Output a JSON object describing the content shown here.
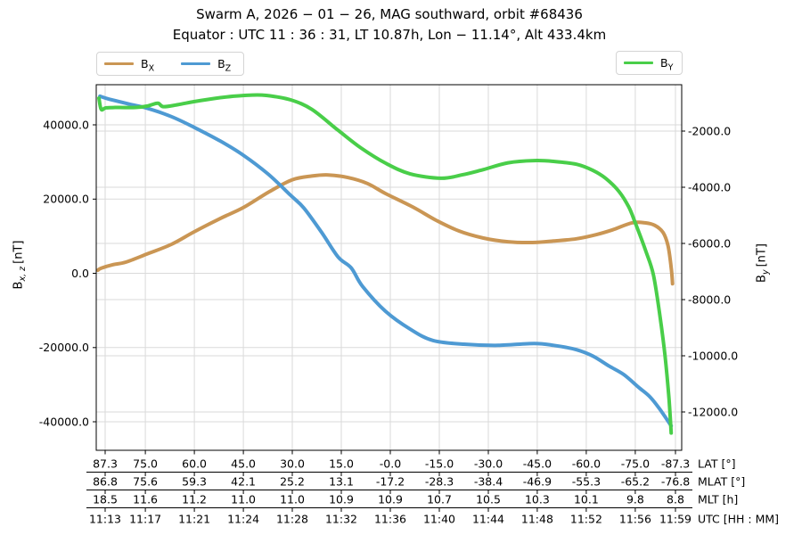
{
  "title": "Swarm A,  2026 − 01 − 26,  MAG southward,  orbit #68436",
  "subtitle": "Equator :  UTC 11 : 36 : 31,  LT 10.87h,  Lon  − 11.14°,  Alt 433.4km",
  "colors": {
    "bx": "#CA9654",
    "bz": "#4E9AD3",
    "by": "#49CE49",
    "grid": "#DADADA",
    "spine": "#000000"
  },
  "legend_left": [
    {
      "base": "B",
      "sub": "X",
      "color_key": "bx"
    },
    {
      "base": "B",
      "sub": "Z",
      "color_key": "bz"
    }
  ],
  "legend_right": [
    {
      "base": "B",
      "sub": "Y",
      "color_key": "by"
    }
  ],
  "axes": {
    "left": {
      "base": "B",
      "sub": "x, z",
      "unit": "[nT]",
      "tick_labels": [
        "40000.0",
        "20000.0",
        "0.0",
        "-20000.0",
        "-40000.0"
      ]
    },
    "right": {
      "base": "B",
      "sub": "y",
      "unit": "[nT]",
      "tick_labels": [
        "-2000.0",
        "-4000.0",
        "-6000.0",
        "-8000.0",
        "-10000.0",
        "-12000.0"
      ]
    },
    "bottom_rows": [
      {
        "name": "LAT [°]",
        "values": [
          "87.3",
          "75.0",
          "60.0",
          "45.0",
          "30.0",
          "15.0",
          "-0.0",
          "-15.0",
          "-30.0",
          "-45.0",
          "-60.0",
          "-75.0",
          "-87.3"
        ]
      },
      {
        "name": "MLAT [°]",
        "values": [
          "86.8",
          "75.6",
          "59.3",
          "42.1",
          "25.2",
          "13.1",
          "-17.2",
          "-28.3",
          "-38.4",
          "-46.9",
          "-55.3",
          "-65.2",
          "-76.8"
        ]
      },
      {
        "name": "MLT [h]",
        "values": [
          "18.5",
          "11.6",
          "11.2",
          "11.0",
          "11.0",
          "10.9",
          "10.9",
          "10.7",
          "10.5",
          "10.3",
          "10.1",
          "9.8",
          "8.8"
        ]
      },
      {
        "name": "UTC [HH : MM]",
        "values": [
          "11:13",
          "11:17",
          "11:21",
          "11:24",
          "11:28",
          "11:32",
          "11:36",
          "11:40",
          "11:44",
          "11:48",
          "11:52",
          "11:56",
          "11:59"
        ]
      }
    ]
  },
  "chart_data": {
    "type": "line",
    "x_axis": "geographic latitude [°], 87.3 at left to -87.3 at right",
    "grid": true,
    "left_ylim": [
      -47600,
      50900
    ],
    "right_ylim": [
      -13360,
      -350
    ],
    "series": [
      {
        "name": "BX",
        "axis": "left",
        "color_key": "bx",
        "points": [
          [
            89.5,
            850
          ],
          [
            88.5,
            1400
          ],
          [
            85,
            2300
          ],
          [
            81,
            3000
          ],
          [
            74.5,
            5200
          ],
          [
            67,
            7800
          ],
          [
            60,
            11200
          ],
          [
            52,
            14800
          ],
          [
            45,
            17700
          ],
          [
            37,
            22000
          ],
          [
            30,
            25200
          ],
          [
            24,
            26200
          ],
          [
            19,
            26500
          ],
          [
            13,
            25800
          ],
          [
            7,
            24200
          ],
          [
            1.5,
            21500
          ],
          [
            -7,
            17800
          ],
          [
            -14,
            14300
          ],
          [
            -21,
            11400
          ],
          [
            -28.5,
            9500
          ],
          [
            -36,
            8500
          ],
          [
            -43.5,
            8300
          ],
          [
            -50,
            8700
          ],
          [
            -57,
            9300
          ],
          [
            -63,
            10400
          ],
          [
            -68,
            11700
          ],
          [
            -74,
            13600
          ],
          [
            -78,
            13600
          ],
          [
            -81,
            12900
          ],
          [
            -83.5,
            11000
          ],
          [
            -85,
            7500
          ],
          [
            -86,
            1500
          ],
          [
            -86.4,
            -2800
          ]
        ]
      },
      {
        "name": "BZ",
        "axis": "left",
        "color_key": "bz",
        "points": [
          [
            88.9,
            47700
          ],
          [
            86,
            46900
          ],
          [
            80,
            45600
          ],
          [
            74.5,
            44500
          ],
          [
            67,
            42200
          ],
          [
            60,
            39300
          ],
          [
            52,
            35600
          ],
          [
            45,
            31800
          ],
          [
            37.5,
            26800
          ],
          [
            30.5,
            21000
          ],
          [
            26.5,
            17600
          ],
          [
            21,
            11000
          ],
          [
            16,
            4400
          ],
          [
            12,
            1500
          ],
          [
            8.5,
            -3500
          ],
          [
            1.5,
            -10200
          ],
          [
            -6,
            -15000
          ],
          [
            -13,
            -18100
          ],
          [
            -22.5,
            -19100
          ],
          [
            -33,
            -19400
          ],
          [
            -44,
            -18900
          ],
          [
            -50,
            -19400
          ],
          [
            -57,
            -20600
          ],
          [
            -62,
            -22300
          ],
          [
            -67,
            -25000
          ],
          [
            -71.5,
            -27300
          ],
          [
            -76,
            -30700
          ],
          [
            -79.5,
            -33300
          ],
          [
            -82.5,
            -36600
          ],
          [
            -86,
            -41100
          ]
        ]
      },
      {
        "name": "BY",
        "axis": "right",
        "color_key": "by",
        "points": [
          [
            89.2,
            -830
          ],
          [
            88.5,
            -1230
          ],
          [
            87,
            -1170
          ],
          [
            83,
            -1160
          ],
          [
            78,
            -1160
          ],
          [
            74.5,
            -1110
          ],
          [
            71.2,
            -1010
          ],
          [
            69.5,
            -1130
          ],
          [
            65,
            -1060
          ],
          [
            60,
            -950
          ],
          [
            54,
            -840
          ],
          [
            48,
            -760
          ],
          [
            43,
            -720
          ],
          [
            38,
            -730
          ],
          [
            30.5,
            -890
          ],
          [
            24,
            -1230
          ],
          [
            16,
            -1970
          ],
          [
            9,
            -2600
          ],
          [
            1.5,
            -3140
          ],
          [
            -6,
            -3520
          ],
          [
            -15.5,
            -3680
          ],
          [
            -22,
            -3560
          ],
          [
            -28.5,
            -3370
          ],
          [
            -36,
            -3130
          ],
          [
            -44,
            -3050
          ],
          [
            -50,
            -3080
          ],
          [
            -57,
            -3180
          ],
          [
            -62,
            -3400
          ],
          [
            -66,
            -3690
          ],
          [
            -70,
            -4150
          ],
          [
            -73,
            -4700
          ],
          [
            -75,
            -5270
          ],
          [
            -78.3,
            -6300
          ],
          [
            -80.5,
            -7100
          ],
          [
            -82.4,
            -8450
          ],
          [
            -84.1,
            -10000
          ],
          [
            -85.3,
            -11500
          ],
          [
            -86,
            -12750
          ]
        ]
      }
    ]
  }
}
